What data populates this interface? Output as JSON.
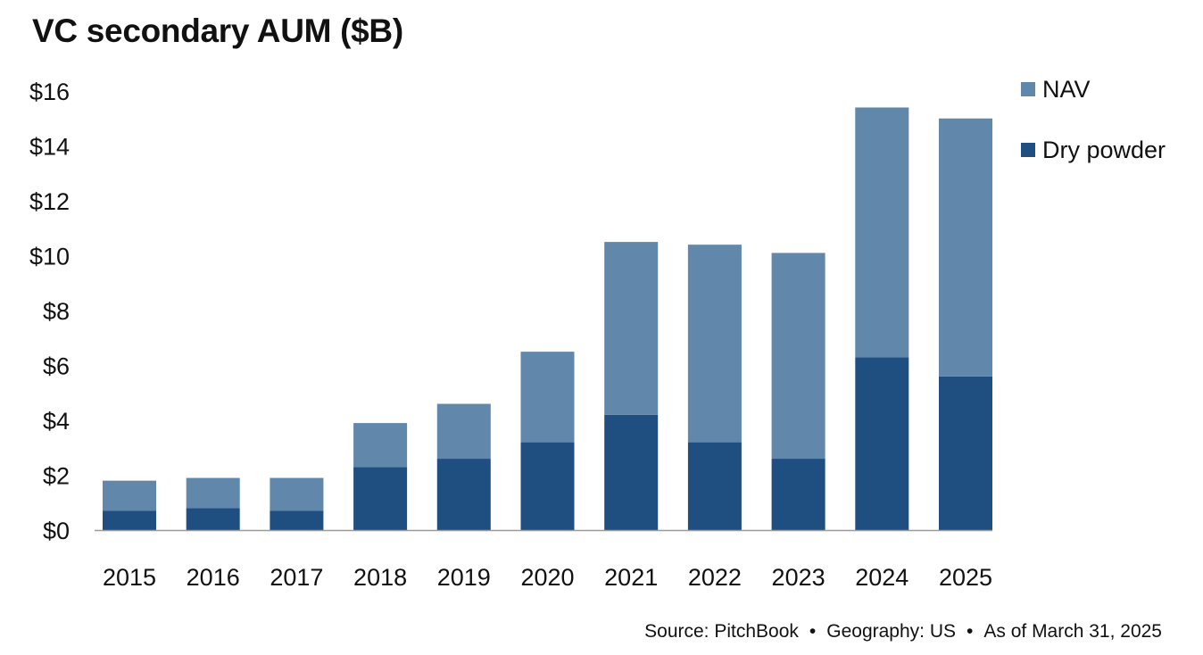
{
  "chart_data": {
    "type": "bar",
    "stacked": true,
    "title": "VC secondary AUM ($B)",
    "categories": [
      "2015",
      "2016",
      "2017",
      "2018",
      "2019",
      "2020",
      "2021",
      "2022",
      "2023",
      "2024",
      "2025"
    ],
    "series": [
      {
        "name": "Dry powder",
        "color": "#1f4e80",
        "values": [
          0.7,
          0.8,
          0.7,
          2.3,
          2.6,
          3.2,
          4.2,
          3.2,
          2.6,
          6.3,
          5.6
        ]
      },
      {
        "name": "NAV",
        "color": "#6187aa",
        "values": [
          1.1,
          1.1,
          1.2,
          1.6,
          2.0,
          3.3,
          6.3,
          7.2,
          7.5,
          9.1,
          9.4
        ]
      }
    ],
    "legend_order": [
      "NAV",
      "Dry powder"
    ],
    "y_ticks": [
      0,
      2,
      4,
      6,
      8,
      10,
      12,
      14,
      16
    ],
    "y_tick_labels": [
      "$0",
      "$2",
      "$4",
      "$6",
      "$8",
      "$10",
      "$12",
      "$14",
      "$16"
    ],
    "ylim": [
      0,
      16
    ],
    "xlabel": "",
    "ylabel": "",
    "grid": false,
    "legend_position": "top-right"
  },
  "source": {
    "source_text": "Source: PitchBook",
    "geography_text": "Geography: US",
    "as_of_text": "As of March 31, 2025",
    "separator": "•"
  }
}
